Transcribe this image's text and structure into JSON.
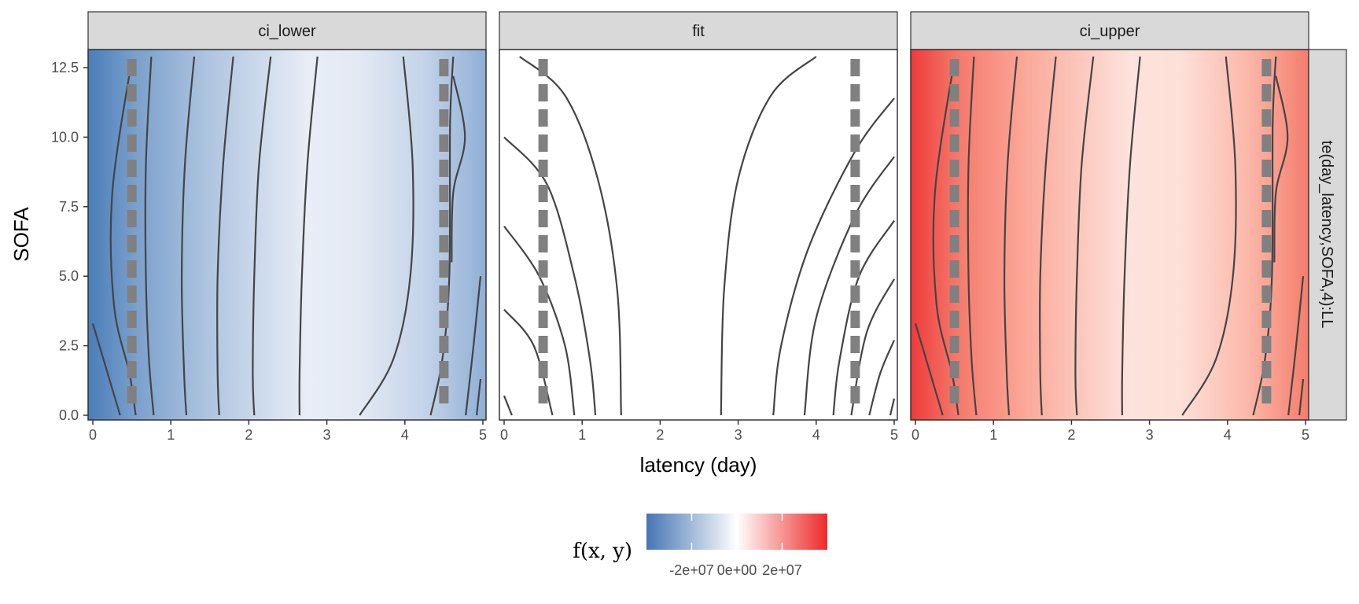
{
  "chart_data": {
    "type": "heatmap",
    "xlabel": "latency (day)",
    "ylabel": "SOFA",
    "xlim": [
      0,
      5
    ],
    "ylim": [
      0,
      13
    ],
    "x_ticks": [
      0,
      1,
      2,
      3,
      4,
      5
    ],
    "y_ticks": [
      "0.0",
      "2.5",
      "5.0",
      "7.5",
      "10.0",
      "12.5"
    ],
    "y_tick_values": [
      0,
      2.5,
      5,
      7.5,
      10,
      12.5
    ],
    "facets": [
      {
        "label": "ci_lower",
        "fill": "low"
      },
      {
        "label": "fit",
        "fill": "none"
      },
      {
        "label": "ci_upper",
        "fill": "high"
      }
    ],
    "row_strip_label": "te(day_latency,SOFA,4):LL",
    "reference_lines": {
      "x": [
        0.5,
        4.5
      ],
      "style": "dashed",
      "color": "#808080"
    },
    "contour_color": "#444444",
    "legend": {
      "title": "f(x, y)",
      "tick_labels": [
        "-2e+07",
        "0e+00",
        "2e+07"
      ],
      "tick_values": [
        -20000000,
        0,
        20000000
      ],
      "range": [
        -40000000,
        40000000
      ],
      "colors": [
        "#4575b4",
        "#ffffff",
        "#ee2a2a"
      ],
      "placement": "bottom"
    }
  }
}
